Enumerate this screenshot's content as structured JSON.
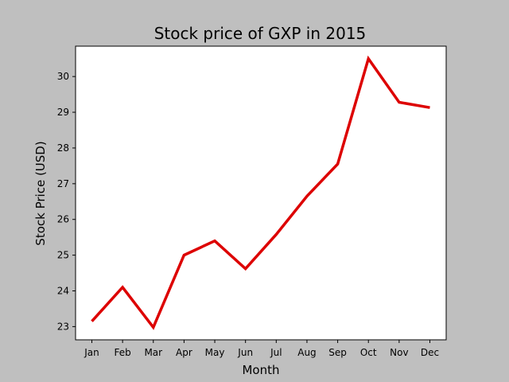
{
  "chart_data": {
    "type": "line",
    "title": "Stock price of GXP in 2015",
    "xlabel": "Month",
    "ylabel": "Stock Price (USD)",
    "categories": [
      "Jan",
      "Feb",
      "Mar",
      "Apr",
      "May",
      "Jun",
      "Jul",
      "Aug",
      "Sep",
      "Oct",
      "Nov",
      "Dec"
    ],
    "series": [
      {
        "values": [
          23.15,
          24.1,
          22.98,
          25.0,
          25.4,
          24.62,
          25.58,
          26.65,
          27.55,
          30.5,
          29.28,
          29.13
        ],
        "color": "#dd0000"
      }
    ],
    "ylim": [
      22.63,
      30.85
    ],
    "yticks": [
      23,
      24,
      25,
      26,
      27,
      28,
      29,
      30
    ],
    "grid": false,
    "legend": "none"
  }
}
